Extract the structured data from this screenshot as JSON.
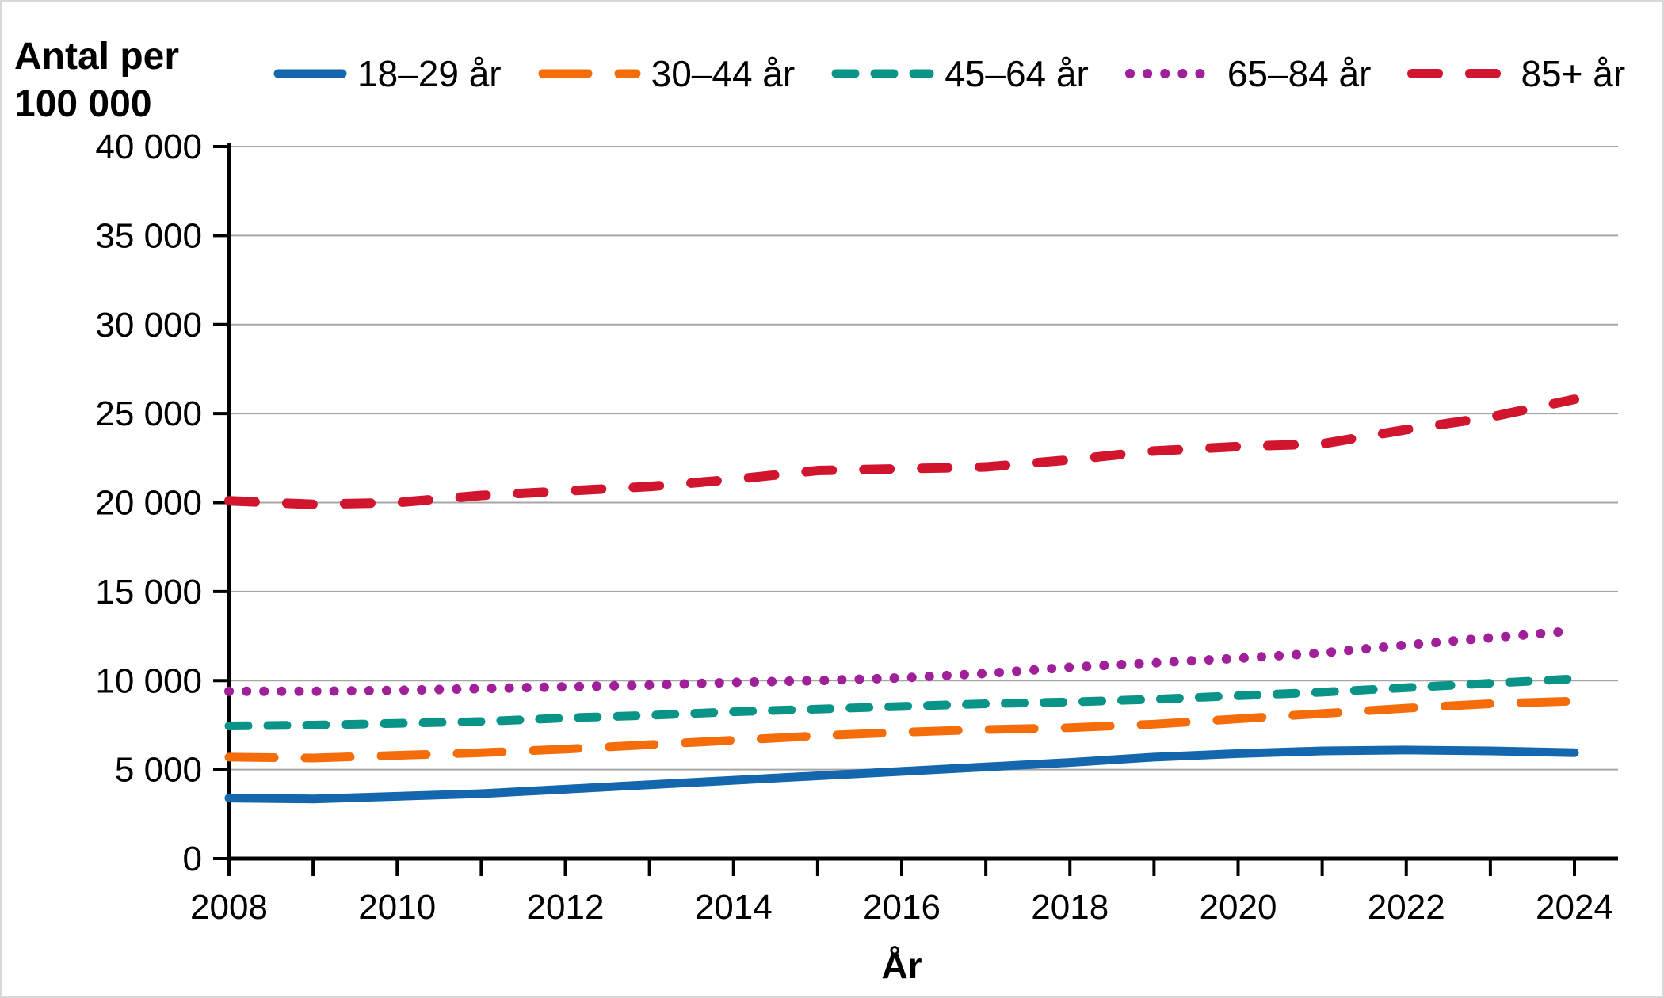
{
  "figure": {
    "y_axis_title_line1": "Antal per",
    "y_axis_title_line2": "100 000",
    "x_axis_title": "År"
  },
  "chart_data": {
    "type": "line",
    "title": "",
    "xlabel": "År",
    "ylabel": "Antal per 100 000",
    "x": [
      2008,
      2009,
      2010,
      2011,
      2012,
      2013,
      2014,
      2015,
      2016,
      2017,
      2018,
      2019,
      2020,
      2021,
      2022,
      2023,
      2024
    ],
    "x_tick_label_years": [
      2008,
      2010,
      2012,
      2014,
      2016,
      2018,
      2020,
      2022,
      2024
    ],
    "x_tick_labels": [
      "2008",
      "2010",
      "2012",
      "2014",
      "2016",
      "2018",
      "2020",
      "2022",
      "2024"
    ],
    "y_ticks": [
      0,
      5000,
      10000,
      15000,
      20000,
      25000,
      30000,
      35000,
      40000
    ],
    "y_tick_labels": [
      "0",
      "5 000",
      "10 000",
      "15 000",
      "20 000",
      "25 000",
      "30 000",
      "35 000",
      "40 000"
    ],
    "ylim": [
      0,
      40000
    ],
    "xlim": [
      2008,
      2024
    ],
    "grid": "horizontal",
    "legend_position": "top",
    "series": [
      {
        "name": "18–29 år",
        "color": "#1467ad",
        "style": "solid",
        "values": [
          3400,
          3350,
          3500,
          3650,
          3900,
          4150,
          4400,
          4650,
          4900,
          5150,
          5400,
          5700,
          5900,
          6050,
          6100,
          6050,
          5950
        ]
      },
      {
        "name": "30–44 år",
        "color": "#f56c0a",
        "style": "long-dash",
        "values": [
          5700,
          5650,
          5800,
          5950,
          6150,
          6400,
          6650,
          6900,
          7100,
          7250,
          7350,
          7550,
          7850,
          8150,
          8450,
          8700,
          8850
        ]
      },
      {
        "name": "45–64 år",
        "color": "#0a9487",
        "style": "dash",
        "values": [
          7450,
          7500,
          7600,
          7700,
          7900,
          8050,
          8250,
          8400,
          8550,
          8700,
          8800,
          8950,
          9150,
          9350,
          9600,
          9850,
          10100
        ]
      },
      {
        "name": "65–84 år",
        "color": "#a0209a",
        "style": "dot",
        "values": [
          9400,
          9400,
          9450,
          9550,
          9650,
          9750,
          9900,
          10000,
          10150,
          10400,
          10750,
          11000,
          11250,
          11550,
          12000,
          12400,
          12800
        ]
      },
      {
        "name": "85+ år",
        "color": "#d2152e",
        "style": "wide-dash",
        "values": [
          20100,
          19900,
          20000,
          20400,
          20650,
          20900,
          21300,
          21800,
          21900,
          22000,
          22400,
          22900,
          23150,
          23300,
          24100,
          24800,
          25800
        ]
      }
    ]
  }
}
